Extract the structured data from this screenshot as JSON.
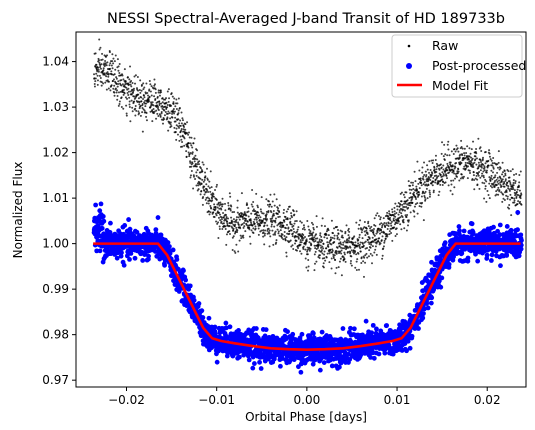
{
  "chart_data": {
    "type": "scatter",
    "title": "NESSI Spectral-Averaged J-band Transit of HD 189733b",
    "xlabel": "Orbital Phase [days]",
    "ylabel": "Normalized Flux",
    "xlim": [
      -0.0256,
      0.0243
    ],
    "ylim": [
      0.9685,
      1.0465
    ],
    "xticks": [
      -0.02,
      -0.01,
      0.0,
      0.01,
      0.02
    ],
    "xtick_labels": [
      "−0.02",
      "−0.01",
      "0.00",
      "0.01",
      "0.02"
    ],
    "yticks": [
      0.97,
      0.98,
      0.99,
      1.0,
      1.01,
      1.02,
      1.03,
      1.04
    ],
    "ytick_labels": [
      "0.97",
      "0.98",
      "0.99",
      "1.00",
      "1.01",
      "1.02",
      "1.03",
      "1.04"
    ],
    "grid": false,
    "legend": {
      "position": "top-right",
      "entries": [
        {
          "label": "Raw",
          "marker": "small-dot",
          "color": "#000000"
        },
        {
          "label": "Post-processed",
          "marker": "dot",
          "color": "#0000ff"
        },
        {
          "label": "Model Fit",
          "marker": "line",
          "color": "#ff0000"
        }
      ]
    },
    "series": [
      {
        "name": "Raw",
        "style": "scatter-small",
        "color": "#000000",
        "x_range": [
          -0.0236,
          0.0238
        ],
        "trend": {
          "x": [
            -0.0236,
            -0.022,
            -0.02,
            -0.018,
            -0.016,
            -0.014,
            -0.012,
            -0.01,
            -0.008,
            -0.006,
            -0.004,
            -0.002,
            0.0,
            0.002,
            0.004,
            0.006,
            0.008,
            0.01,
            0.012,
            0.014,
            0.016,
            0.018,
            0.02,
            0.022,
            0.0238
          ],
          "y": [
            1.038,
            1.038,
            1.033,
            1.032,
            1.031,
            1.026,
            1.015,
            1.007,
            1.004,
            1.005,
            1.005,
            1.004,
            1.0,
            0.999,
            0.999,
            1.0,
            1.002,
            1.006,
            1.011,
            1.015,
            1.017,
            1.018,
            1.016,
            1.013,
            1.01
          ]
        },
        "scatter": 0.0023
      },
      {
        "name": "Post-processed",
        "style": "scatter",
        "color": "#0000ff",
        "x_range": [
          -0.0236,
          0.0238
        ],
        "follows": "Model Fit",
        "scatter": 0.0016
      },
      {
        "name": "Model Fit",
        "style": "line",
        "color": "#ff0000",
        "x": [
          -0.0237,
          -0.0165,
          -0.0155,
          -0.0145,
          -0.0135,
          -0.0125,
          -0.0115,
          -0.0105,
          -0.0095,
          -0.008,
          -0.006,
          -0.004,
          -0.002,
          0.0,
          0.002,
          0.004,
          0.006,
          0.008,
          0.0095,
          0.0105,
          0.0115,
          0.0125,
          0.0135,
          0.0145,
          0.0155,
          0.0165,
          0.0237
        ],
        "y": [
          1.0,
          1.0,
          0.9975,
          0.9935,
          0.9895,
          0.9855,
          0.9815,
          0.9792,
          0.9786,
          0.9781,
          0.9775,
          0.977,
          0.9768,
          0.9767,
          0.9768,
          0.977,
          0.9775,
          0.9781,
          0.9786,
          0.9792,
          0.9815,
          0.9855,
          0.9895,
          0.9935,
          0.9975,
          1.0,
          1.0
        ]
      }
    ]
  }
}
